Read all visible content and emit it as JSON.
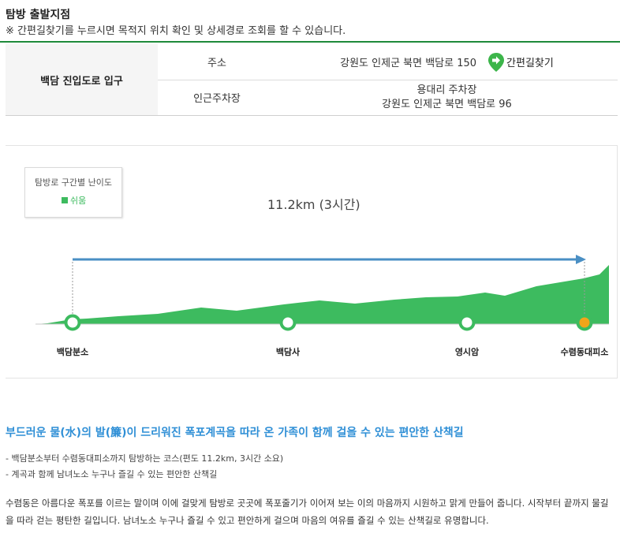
{
  "header": {
    "title": "탐방 출발지점",
    "notice": "※ 간편길찾기를 누르시면 목적지 위치 확인 및 상세경로 조회를 할 수 있습니다."
  },
  "start_point": {
    "name": "백담 진입도로 입구",
    "address_label": "주소",
    "address": "강원도 인제군 북면 백담로 150",
    "find_button": "간편길찾기",
    "parking_label": "인근주차장",
    "parking_name": "용대리 주차장",
    "parking_address": "강원도 인제군 북면 백담로 96"
  },
  "course": {
    "legend_title": "탐방로 구간별 난이도",
    "difficulty": "쉬움",
    "distance_time": "11.2km (3시간)",
    "waypoints": [
      "백담분소",
      "백담사",
      "영시암",
      "수렴동대피소"
    ],
    "colors": {
      "terrain": "#3dbb5f",
      "arrow": "#4a8fc4",
      "waypoint_end": "#f2a51a"
    }
  },
  "description": {
    "subtitle": "부드러운 물(水)의 발(簾)이 드리워진 폭포계곡을 따라 온 가족이 함께 걸을 수 있는 편안한 산책길",
    "bullets": [
      "- 백담분소부터 수렴동대피소까지 탐방하는 코스(편도 11.2km, 3시간 소요)",
      "- 계곡과 함께 남녀노소 누구나 즐길 수 있는 편안한 산책길"
    ],
    "body": "수렴동은 아름다운 폭포를 이르는 말이며 이에 걸맞게 탐방로 곳곳에 폭포줄기가 이어져 보는 이의 마음까지 시원하고 맑게 만들어 줍니다. 시작부터 끝까지 물길을 따라 걷는 평탄한 길입니다. 남녀노소 누구나 즐길 수 있고 편안하게 걸으며 마음의 여유를 즐길 수 있는 산책길로 유명합니다."
  }
}
